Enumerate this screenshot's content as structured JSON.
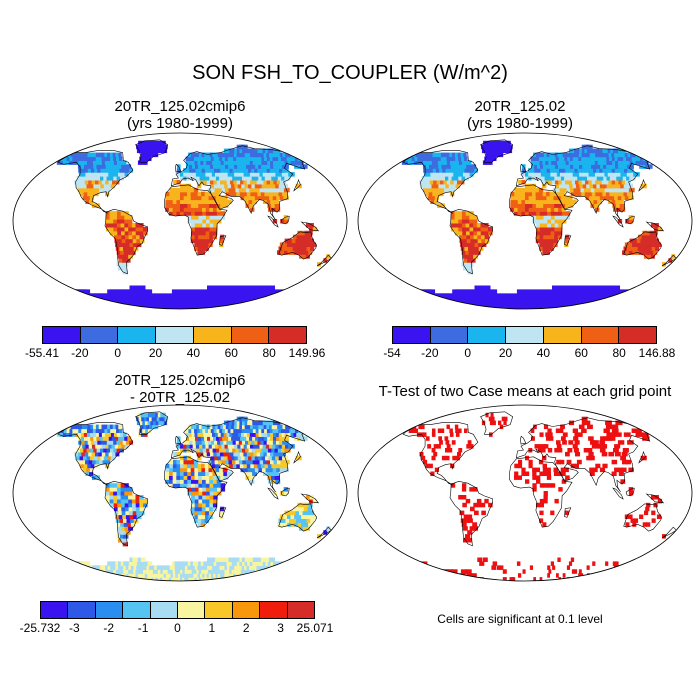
{
  "title": "SON FSH_TO_COUPLER (W/m^2)",
  "panels": [
    {
      "title_line1": "20TR_125.02cmip6",
      "title_line2": "(yrs 1980-1999)"
    },
    {
      "title_line1": "20TR_125.02",
      "title_line2": "(yrs 1980-1999)"
    },
    {
      "title_line1": "20TR_125.02cmip6",
      "title_line2": "- 20TR_125.02"
    },
    {
      "title_line1": "T-Test of two Case means at each grid point",
      "note": "Cells are significant at 0.1 level"
    }
  ],
  "colorbars": [
    {
      "colors": [
        "#3a14f0",
        "#3c6ce0",
        "#1ab4ee",
        "#bfe4f2",
        "#f7b41c",
        "#f06014",
        "#d62c28"
      ],
      "labels": [
        "-55.41",
        "-20",
        "0",
        "20",
        "40",
        "60",
        "80",
        "149.96"
      ]
    },
    {
      "colors": [
        "#3a14f0",
        "#3c6ce0",
        "#1ab4ee",
        "#bfe4f2",
        "#f7b41c",
        "#f06014",
        "#d62c28"
      ],
      "labels": [
        "-54",
        "-20",
        "0",
        "20",
        "40",
        "60",
        "80",
        "146.88"
      ]
    },
    {
      "colors": [
        "#3a14f0",
        "#2e58e6",
        "#2a8ef0",
        "#56c4f2",
        "#a8dcf2",
        "#f8f4a0",
        "#f8c828",
        "#f8960c",
        "#f01c0c",
        "#d62c28"
      ],
      "labels": [
        "-25.732",
        "-3",
        "-2",
        "-1",
        "0",
        "1",
        "2",
        "3",
        "25.071"
      ]
    }
  ]
}
